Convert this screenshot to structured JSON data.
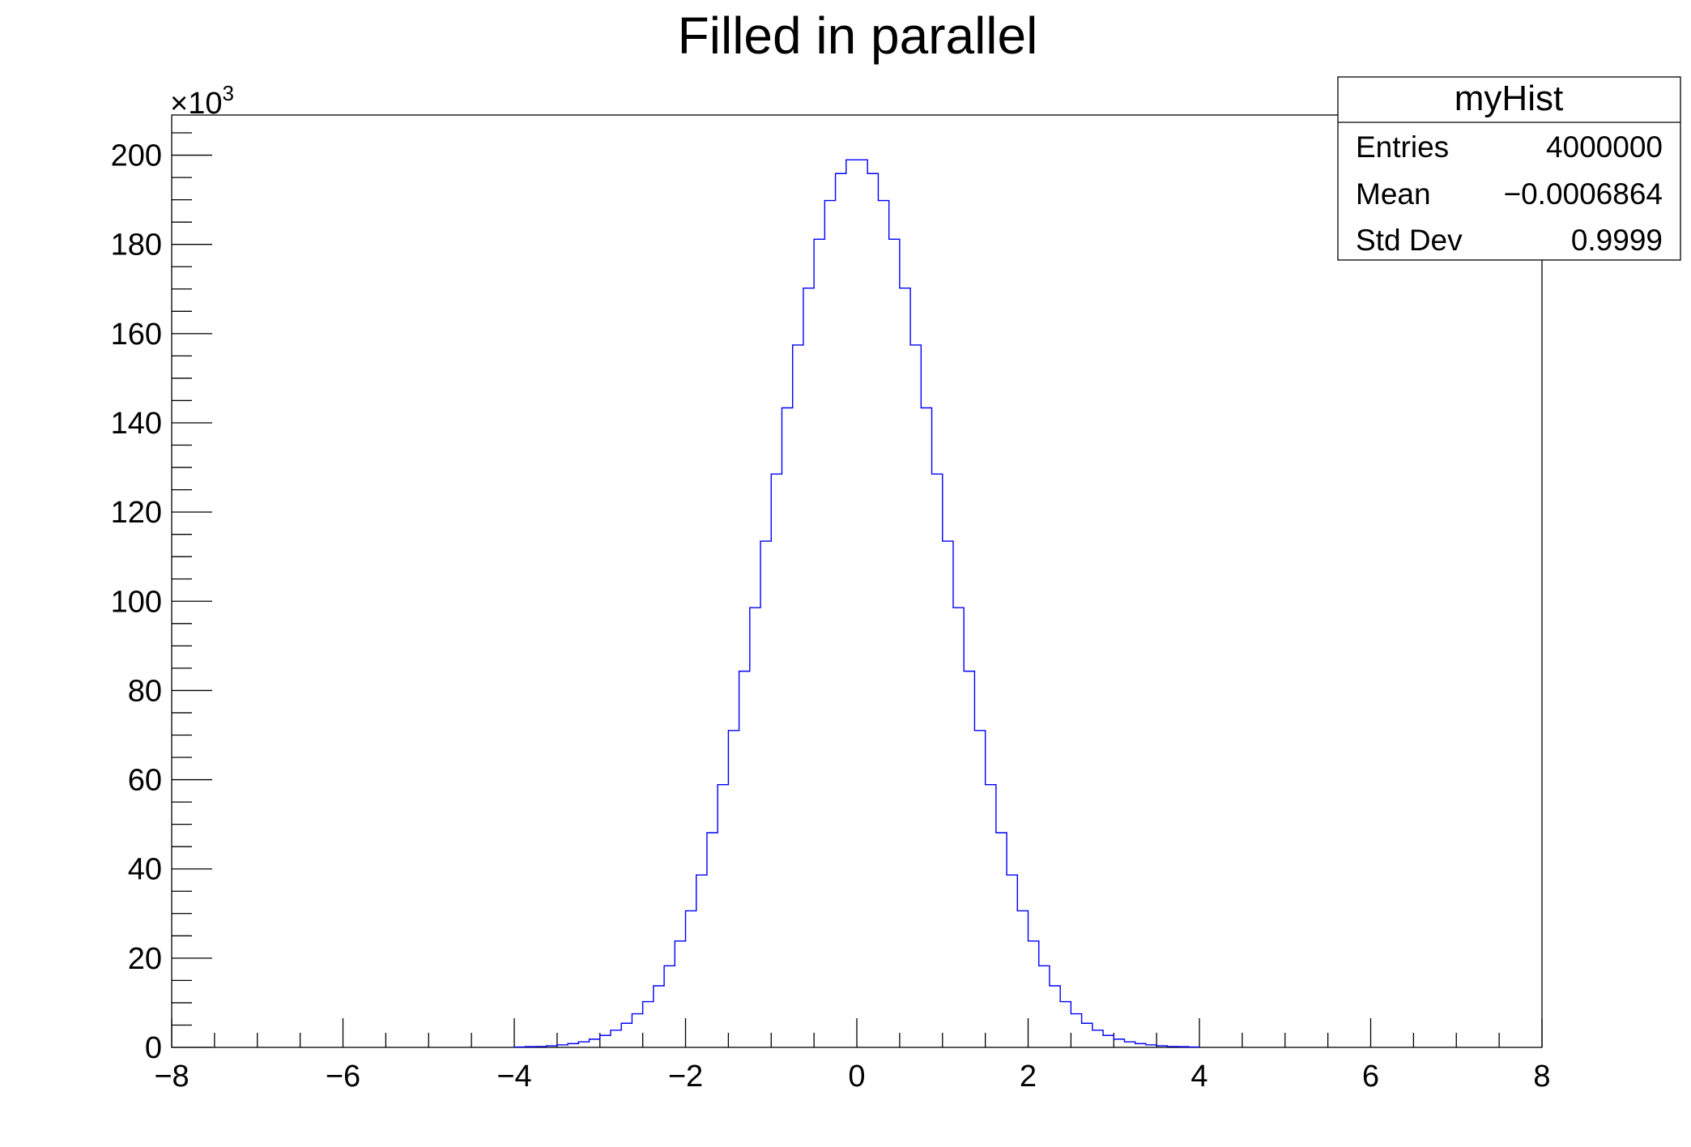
{
  "chart_data": {
    "type": "histogram",
    "title": "Filled in parallel",
    "xlabel": "",
    "ylabel": "",
    "y_multiplier_label": "×10",
    "y_multiplier_exponent": "3",
    "xlim": [
      -8,
      8
    ],
    "ylim": [
      0,
      209000
    ],
    "bin_low": -4,
    "bin_width": 0.125,
    "values": [
      80,
      160,
      200,
      360,
      560,
      840,
      1240,
      1840,
      2680,
      3840,
      5400,
      7520,
      10240,
      13800,
      18280,
      23840,
      30600,
      38640,
      48120,
      58880,
      71040,
      84320,
      98560,
      113480,
      128520,
      143360,
      157440,
      170200,
      181160,
      189840,
      195880,
      198960,
      198960,
      195880,
      189840,
      181160,
      170200,
      157440,
      143360,
      128520,
      113480,
      98560,
      84320,
      71040,
      58880,
      48120,
      38640,
      30600,
      23840,
      18280,
      13800,
      10240,
      7520,
      5400,
      3840,
      2680,
      1840,
      1240,
      840,
      560,
      360,
      200,
      160,
      80
    ],
    "x_ticks": [
      -8,
      -6,
      -4,
      -2,
      0,
      2,
      4,
      6,
      8
    ],
    "x_tick_labels": [
      "−8",
      "−6",
      "−4",
      "−2",
      "0",
      "2",
      "4",
      "6",
      "8"
    ],
    "y_ticks": [
      0,
      20000,
      40000,
      60000,
      80000,
      100000,
      120000,
      140000,
      160000,
      180000,
      200000
    ],
    "y_tick_labels": [
      "0",
      "20",
      "40",
      "60",
      "80",
      "100",
      "120",
      "140",
      "160",
      "180",
      "200"
    ],
    "line_color": "#0000ff",
    "grid": false,
    "stats_box": {
      "name": "myHist",
      "position": "top-right",
      "rows": [
        {
          "label": "Entries",
          "value": "4000000"
        },
        {
          "label": "Mean",
          "value": "−0.0006864"
        },
        {
          "label": "Std Dev",
          "value": "0.9999"
        }
      ]
    }
  }
}
